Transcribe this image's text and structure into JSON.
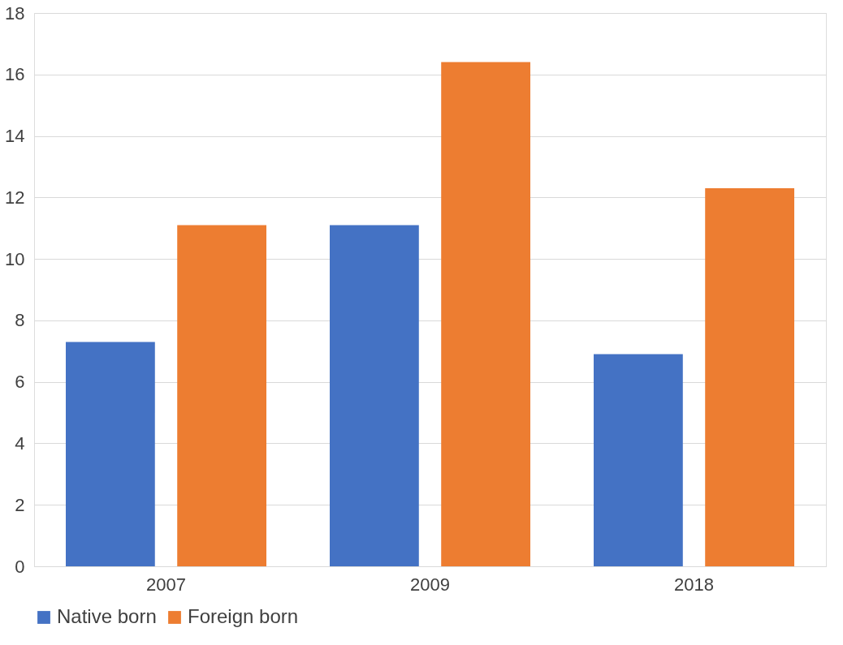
{
  "chart_data": {
    "type": "bar",
    "categories": [
      "2007",
      "2009",
      "2018"
    ],
    "series": [
      {
        "name": "Native born",
        "color": "#4472c4",
        "values": [
          7.3,
          11.1,
          6.9
        ]
      },
      {
        "name": "Foreign born",
        "color": "#ed7d31",
        "values": [
          11.1,
          16.4,
          12.3
        ]
      }
    ],
    "ylim": [
      0,
      18
    ],
    "yticks": [
      0,
      2,
      4,
      6,
      8,
      10,
      12,
      14,
      16,
      18
    ],
    "grid": "y",
    "legend": "bottom"
  }
}
